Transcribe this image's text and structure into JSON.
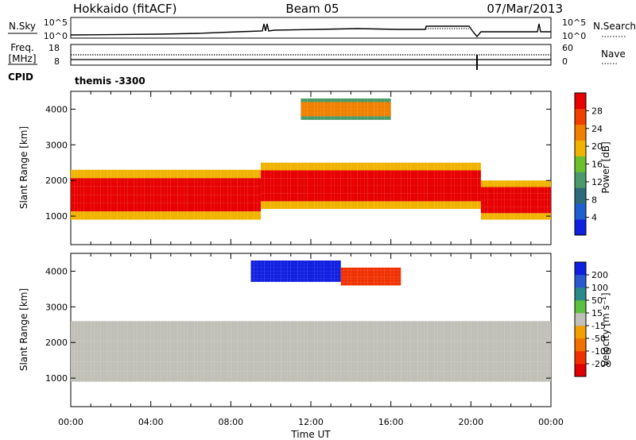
{
  "header": {
    "radar": "Hokkaido (fitACF)",
    "beam": "Beam 05",
    "date": "07/Mar/2013"
  },
  "noise_panel": {
    "left_label": "N.Sky",
    "left_ticks": [
      "10^5",
      "10^0"
    ],
    "right_label": "N.Search",
    "right_ticks": [
      "10^5",
      "10^0"
    ]
  },
  "freq_panel": {
    "left_label_line1": "Freq.",
    "left_label_line2": "[MHz]",
    "left_ticks": [
      "18",
      "8"
    ],
    "right_label": "Nave",
    "right_ticks": [
      "60",
      "0"
    ]
  },
  "cpid": {
    "label": "CPID",
    "program": "themis -3300"
  },
  "x_axis": {
    "title": "Time UT",
    "ticks": [
      "00:00",
      "04:00",
      "08:00",
      "12:00",
      "16:00",
      "20:00",
      "00:00"
    ]
  },
  "chart_data": [
    {
      "type": "heatmap",
      "title": "",
      "xlabel": "Time UT",
      "ylabel": "Slant Range [km]",
      "x_range_hours": [
        0,
        24
      ],
      "ylim": [
        200,
        4500
      ],
      "y_ticks": [
        "1000",
        "2000",
        "3000",
        "4000"
      ],
      "colorbar": {
        "label": "Power [dB]",
        "ticks": [
          "4",
          "8",
          "12",
          "16",
          "20",
          "24",
          "28"
        ],
        "range": [
          0,
          30
        ],
        "colors": [
          "#1020e0",
          "#1e5fd0",
          "#2d6a7c",
          "#4b9a6a",
          "#6dbf2e",
          "#f0b400",
          "#f08000",
          "#f04000",
          "#e80000"
        ]
      },
      "features": [
        {
          "name": "near-range F scatter",
          "t_start": 0,
          "t_end": 9.5,
          "range_min": 900,
          "range_max": 2300,
          "level": "high"
        },
        {
          "name": "rising scatter band",
          "t_start": 9.5,
          "t_end": 20.5,
          "range_min": 1200,
          "range_max": 2500,
          "level": "high"
        },
        {
          "name": "evening scatter",
          "t_start": 20.5,
          "t_end": 24,
          "range_min": 900,
          "range_max": 2000,
          "level": "high"
        },
        {
          "name": "far-range patch",
          "t_start": 11.5,
          "t_end": 16.0,
          "range_min": 3700,
          "range_max": 4300,
          "level": "medium"
        }
      ]
    },
    {
      "type": "heatmap",
      "title": "",
      "xlabel": "Time UT",
      "ylabel": "Slant Range [km]",
      "x_range_hours": [
        0,
        24
      ],
      "ylim": [
        200,
        4500
      ],
      "y_ticks": [
        "1000",
        "2000",
        "3000",
        "4000"
      ],
      "colorbar": {
        "label": "Velocity [m s⁻¹]",
        "ticks": [
          "200",
          "100",
          "50",
          "15",
          "-15",
          "-50",
          "-100",
          "-200"
        ],
        "range": [
          -250,
          250
        ],
        "colors": [
          "#1020e0",
          "#2a5ad0",
          "#2a8a8a",
          "#5ec040",
          "#c0c0b8",
          "#f0a000",
          "#f07000",
          "#f03000",
          "#e00000"
        ]
      },
      "features": [
        {
          "name": "ground scatter",
          "t_start": 0,
          "t_end": 24,
          "range_min": 900,
          "range_max": 2600,
          "velocity": 0
        },
        {
          "name": "far-range negative-toward patch",
          "t_start": 9.0,
          "t_end": 13.5,
          "range_min": 3700,
          "range_max": 4300,
          "velocity": 200
        },
        {
          "name": "post-noon patch",
          "t_start": 13.5,
          "t_end": 16.5,
          "range_min": 3600,
          "range_max": 4100,
          "velocity": -150
        }
      ]
    }
  ]
}
